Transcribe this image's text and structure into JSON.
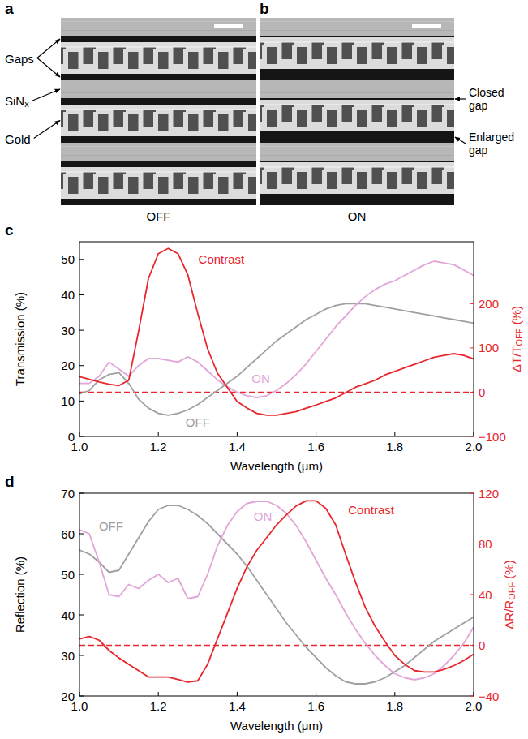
{
  "images": [
    {
      "letter": "a",
      "caption": "OFF",
      "labels": [
        [
          {
            "text": "Gaps"
          }
        ],
        [
          {
            "text": "SiN"
          },
          {
            "text": "x",
            "sub": true
          }
        ],
        [
          {
            "text": "Gold"
          }
        ]
      ]
    },
    {
      "letter": "b",
      "caption": "ON",
      "labels": [
        [
          {
            "text": "Closed gap"
          }
        ],
        [
          {
            "text": "Enlarged gap"
          }
        ]
      ]
    }
  ],
  "chart_data": [
    {
      "type": "line",
      "letter": "c",
      "xlabel": "Wavelength (μm)",
      "ylabel": "Transmission (%)",
      "y2label": [
        {
          "text": "ΔT/T"
        },
        {
          "text": "OFF",
          "sub": true
        },
        {
          "text": " (%)"
        }
      ],
      "x": [
        1.0,
        1.025,
        1.05,
        1.075,
        1.1,
        1.125,
        1.15,
        1.175,
        1.2,
        1.225,
        1.25,
        1.275,
        1.3,
        1.325,
        1.35,
        1.375,
        1.4,
        1.425,
        1.45,
        1.475,
        1.5,
        1.525,
        1.55,
        1.575,
        1.6,
        1.625,
        1.65,
        1.675,
        1.7,
        1.725,
        1.75,
        1.775,
        1.8,
        1.825,
        1.85,
        1.875,
        1.9,
        1.925,
        1.95,
        1.975,
        2.0
      ],
      "xlim": [
        1.0,
        2.0
      ],
      "xticks": [
        {
          "value": 1.0,
          "label": "1.0"
        },
        1.2,
        1.4,
        1.6,
        1.8,
        {
          "value": 2.0,
          "label": "2.0"
        }
      ],
      "ylim": [
        0,
        55
      ],
      "yticks": [
        0,
        10,
        20,
        30,
        40,
        50
      ],
      "y2lim": [
        -100,
        340
      ],
      "y2ticks": [
        {
          "value": -100,
          "label": "−100"
        },
        0,
        100,
        200
      ],
      "series": [
        {
          "name": "OFF",
          "color": "#a0a0a0",
          "values": [
            12,
            13,
            16,
            17.5,
            18,
            15,
            10.5,
            8,
            6.5,
            6,
            6.5,
            7.5,
            9,
            11,
            13,
            15,
            17,
            19.5,
            22,
            24.5,
            27,
            29,
            31,
            33,
            34.5,
            36,
            37,
            37.5,
            37.5,
            37.5,
            37,
            36.5,
            36,
            35.5,
            35,
            34.5,
            34,
            33.5,
            33,
            32.5,
            32
          ]
        },
        {
          "name": "ON",
          "color": "#e2a5d8",
          "values": [
            15,
            15,
            17,
            21,
            19,
            17,
            20,
            22,
            22,
            21.5,
            21,
            22.5,
            21,
            18.5,
            16,
            14,
            12.5,
            11.5,
            11,
            11.5,
            13,
            15,
            17.5,
            20.5,
            24,
            27.5,
            31,
            34,
            37,
            39.5,
            41.5,
            43,
            44,
            45.5,
            47,
            48.5,
            49.5,
            49,
            48.5,
            47,
            45.5
          ]
        },
        {
          "name": "Contrast",
          "color": "#e8262d",
          "axis": "y2",
          "values": [
            35,
            29,
            23,
            18,
            15,
            27,
            138,
            257,
            313,
            325,
            313,
            265,
            178,
            98,
            43,
            11,
            -21,
            -36,
            -48,
            -52,
            -52,
            -48,
            -44,
            -36,
            -29,
            -21,
            -13,
            -1,
            11,
            19,
            27,
            39,
            47,
            55,
            63,
            71,
            79,
            83,
            87,
            83,
            75
          ]
        }
      ],
      "reference_lines": [
        {
          "value": 0,
          "axis": "y2",
          "color": "#e8262d",
          "line_style": "dashed"
        }
      ]
    },
    {
      "type": "line",
      "letter": "d",
      "xlabel": "Wavelength (μm)",
      "ylabel": "Reflection (%)",
      "y2label": [
        {
          "text": "ΔR/R"
        },
        {
          "text": "OFF",
          "sub": true
        },
        {
          "text": " (%)"
        }
      ],
      "x": [
        1.0,
        1.025,
        1.05,
        1.075,
        1.1,
        1.125,
        1.15,
        1.175,
        1.2,
        1.225,
        1.25,
        1.275,
        1.3,
        1.325,
        1.35,
        1.375,
        1.4,
        1.425,
        1.45,
        1.475,
        1.5,
        1.525,
        1.55,
        1.575,
        1.6,
        1.625,
        1.65,
        1.675,
        1.7,
        1.725,
        1.75,
        1.775,
        1.8,
        1.825,
        1.85,
        1.875,
        1.9,
        1.925,
        1.95,
        1.975,
        2.0
      ],
      "xlim": [
        1.0,
        2.0
      ],
      "xticks": [
        {
          "value": 1.0,
          "label": "1.0"
        },
        1.2,
        1.4,
        1.6,
        1.8,
        {
          "value": 2.0,
          "label": "2.0"
        }
      ],
      "ylim": [
        20,
        70
      ],
      "yticks": [
        20,
        30,
        40,
        50,
        60,
        70
      ],
      "y2lim": [
        -40,
        120
      ],
      "y2ticks": [
        {
          "value": -40,
          "label": "−40"
        },
        0,
        40,
        80,
        120
      ],
      "series": [
        {
          "name": "OFF",
          "color": "#a0a0a0",
          "values": [
            56,
            55,
            53,
            50.5,
            51,
            55,
            59,
            63,
            66,
            67,
            67,
            66,
            64.5,
            62.5,
            60,
            57.5,
            55,
            52,
            48.5,
            45,
            41.5,
            38,
            35,
            32,
            29.5,
            27,
            25,
            23.5,
            23,
            23,
            23.5,
            24.5,
            26,
            27.5,
            29.5,
            31.5,
            33.5,
            35,
            36.5,
            38,
            39.5
          ]
        },
        {
          "name": "ON",
          "color": "#e2a5d8",
          "values": [
            61,
            60,
            53,
            45,
            44.5,
            47.5,
            46.5,
            48.5,
            50,
            48,
            49,
            44,
            44.5,
            50,
            57,
            62,
            65.5,
            67.5,
            68,
            68,
            67,
            65,
            62,
            58,
            53.5,
            49,
            45,
            40.5,
            36.5,
            33,
            30,
            27.5,
            25.5,
            24.5,
            24,
            24.5,
            25.5,
            27.5,
            30,
            33,
            37
          ]
        },
        {
          "name": "Contrast",
          "color": "#e8262d",
          "axis": "y2",
          "values": [
            5,
            7,
            4,
            -4,
            -10,
            -15,
            -20,
            -25,
            -25,
            -25,
            -27,
            -29,
            -28,
            -15,
            5,
            25,
            45,
            62,
            75,
            85,
            95,
            103,
            110,
            114,
            114,
            108,
            95,
            72,
            50,
            30,
            15,
            3,
            -8,
            -15,
            -20,
            -21,
            -21,
            -19,
            -16,
            -12,
            -7
          ]
        }
      ],
      "reference_lines": [
        {
          "value": 0,
          "axis": "y2",
          "color": "#e8262d",
          "line_style": "dashed"
        }
      ]
    }
  ]
}
